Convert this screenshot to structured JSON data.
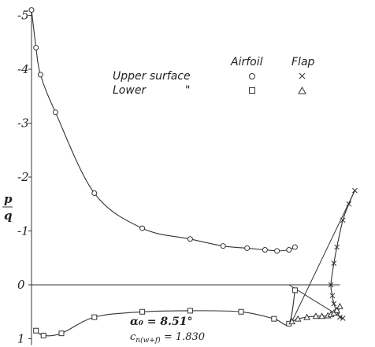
{
  "chart_data": {
    "type": "scatter",
    "title": "",
    "xlabel": "",
    "ylabel_numerator": "p",
    "ylabel_denominator": "q",
    "y_ticks": [
      "-5",
      "-4",
      "-3",
      "-2",
      "-1",
      "0",
      "1"
    ],
    "y_tick_values": [
      -5,
      -4,
      -3,
      -2,
      -1,
      0,
      1
    ],
    "ylim": [
      -5,
      1
    ],
    "grid": false,
    "legend": {
      "placement": "top-right",
      "headers": [
        "Airfoil",
        "Flap"
      ],
      "rows": [
        {
          "label": "Upper surface",
          "airfoil_symbol": "o",
          "flap_symbol": "×"
        },
        {
          "label": "Lower",
          "ditto": "\"",
          "airfoil_symbol": "□",
          "flap_symbol": "Δ"
        }
      ]
    },
    "annotations": {
      "alpha_label": "α₀ = 8.51°",
      "cn_label": "c",
      "cn_subscript": "n(w+f)",
      "cn_value": " = 1.830"
    },
    "series": [
      {
        "name": "Upper surface",
        "component": "airfoil",
        "marker": "circle",
        "points": [
          [
            0,
            -5.1
          ],
          [
            0.015,
            -4.4
          ],
          [
            0.03,
            -3.9
          ],
          [
            0.08,
            -3.2
          ],
          [
            0.21,
            -1.7
          ],
          [
            0.37,
            -1.05
          ],
          [
            0.53,
            -0.85
          ],
          [
            0.64,
            -0.72
          ],
          [
            0.72,
            -0.68
          ],
          [
            0.78,
            -0.65
          ],
          [
            0.82,
            -0.63
          ],
          [
            0.86,
            -0.65
          ],
          [
            0.88,
            -0.7
          ]
        ]
      },
      {
        "name": "Lower",
        "component": "airfoil",
        "marker": "square",
        "points": [
          [
            0.015,
            0.85
          ],
          [
            0.04,
            0.94
          ],
          [
            0.1,
            0.9
          ],
          [
            0.21,
            0.6
          ],
          [
            0.37,
            0.5
          ],
          [
            0.53,
            0.48
          ],
          [
            0.7,
            0.5
          ],
          [
            0.81,
            0.63
          ],
          [
            0.86,
            0.72
          ],
          [
            0.88,
            0.1
          ]
        ]
      },
      {
        "name": "Upper surface",
        "component": "flap",
        "marker": "x",
        "points": [
          [
            1.08,
            -1.75
          ],
          [
            1.06,
            -1.5
          ],
          [
            1.04,
            -1.2
          ],
          [
            1.02,
            -0.7
          ],
          [
            1.01,
            -0.4
          ],
          [
            1.0,
            0.0
          ],
          [
            1.005,
            0.2
          ],
          [
            1.01,
            0.35
          ],
          [
            1.02,
            0.5
          ],
          [
            1.03,
            0.6
          ],
          [
            1.04,
            0.62
          ]
        ]
      },
      {
        "name": "Lower",
        "component": "flap",
        "marker": "triangle",
        "points": [
          [
            0.87,
            0.68
          ],
          [
            0.89,
            0.63
          ],
          [
            0.92,
            0.6
          ],
          [
            0.95,
            0.58
          ],
          [
            0.97,
            0.58
          ],
          [
            0.99,
            0.57
          ],
          [
            1.0,
            0.55
          ],
          [
            1.01,
            0.52
          ],
          [
            1.02,
            0.47
          ],
          [
            1.03,
            0.4
          ]
        ]
      }
    ]
  }
}
